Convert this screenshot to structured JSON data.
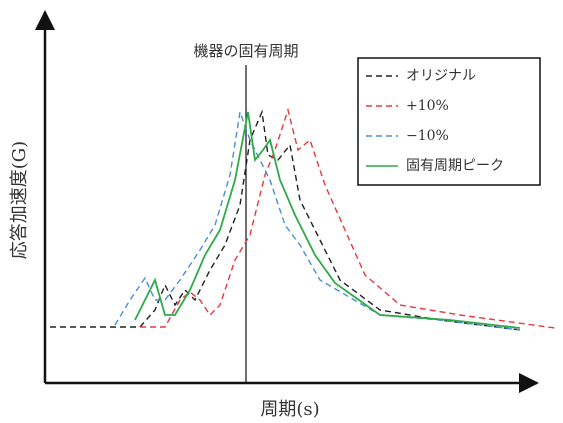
{
  "chart_data": {
    "type": "line",
    "xlabel": "周期(s)",
    "ylabel": "応答加速度(G)",
    "annotation": {
      "text": "機器の固有周期",
      "x": 20.1
    },
    "xlim": [
      0,
      49
    ],
    "ylim": [
      0,
      37
    ],
    "legend": "upper right",
    "series": [
      {
        "name": "オリジナル",
        "color": "#222222",
        "linestyle": "dashed",
        "x": [
          0.5,
          9.5,
          11,
          12,
          13,
          14,
          15,
          16.5,
          18,
          19.5,
          20.5,
          21.7,
          22.3,
          23.3,
          24.5,
          25.5,
          27.5,
          29.5,
          33.5,
          39.5,
          47.5
        ],
        "values": [
          5.6,
          5.6,
          7.3,
          9.8,
          7.8,
          9.3,
          8.3,
          11.3,
          13.8,
          17.8,
          24.3,
          27.1,
          22.8,
          22.3,
          23.8,
          18.3,
          14.3,
          10.3,
          7.3,
          6.3,
          5.3
        ]
      },
      {
        "name": "+10%",
        "color": "#e8383d",
        "linestyle": "dashed",
        "x": [
          9.5,
          12,
          13.5,
          14.5,
          15.5,
          16.5,
          17.5,
          19,
          20.5,
          22,
          23,
          24.3,
          25.3,
          26.5,
          28,
          30,
          32,
          35.5,
          41.5,
          51
        ],
        "values": [
          5.6,
          5.6,
          8.3,
          9.1,
          8.3,
          6.8,
          7.8,
          12.3,
          14.8,
          20.8,
          23.3,
          27.3,
          23.3,
          24.3,
          19.8,
          15.3,
          10.8,
          7.8,
          6.8,
          5.5
        ]
      },
      {
        "name": "−10%",
        "color": "#4a8fd6",
        "linestyle": "dashed",
        "x": [
          7,
          8.5,
          10,
          11,
          12,
          13.5,
          15.5,
          17,
          18.5,
          19.5,
          20.5,
          21.5,
          22.5,
          24,
          25.5,
          27.5,
          33.5,
          39.5,
          47.5
        ],
        "values": [
          5.8,
          8.3,
          10.5,
          8.3,
          8.3,
          10.3,
          13.3,
          15.8,
          20.8,
          27.1,
          24.3,
          22.3,
          20.3,
          15.8,
          13.8,
          10.3,
          6.8,
          6.3,
          5.3
        ]
      },
      {
        "name": "固有周期ピーク",
        "color": "#2eaa4a",
        "linestyle": "solid",
        "x": [
          9,
          11,
          12,
          13,
          14.5,
          16,
          17.5,
          19,
          20.3,
          21,
          21.8,
          22.5,
          23.5,
          25,
          27,
          29,
          33.5,
          40.5,
          47.5
        ],
        "values": [
          6.3,
          10.3,
          6.8,
          6.8,
          9.3,
          12.8,
          15.3,
          20.3,
          27.1,
          22.3,
          23.3,
          24.3,
          20.3,
          16.8,
          12.8,
          10,
          6.8,
          6.3,
          5.5
        ]
      }
    ]
  }
}
